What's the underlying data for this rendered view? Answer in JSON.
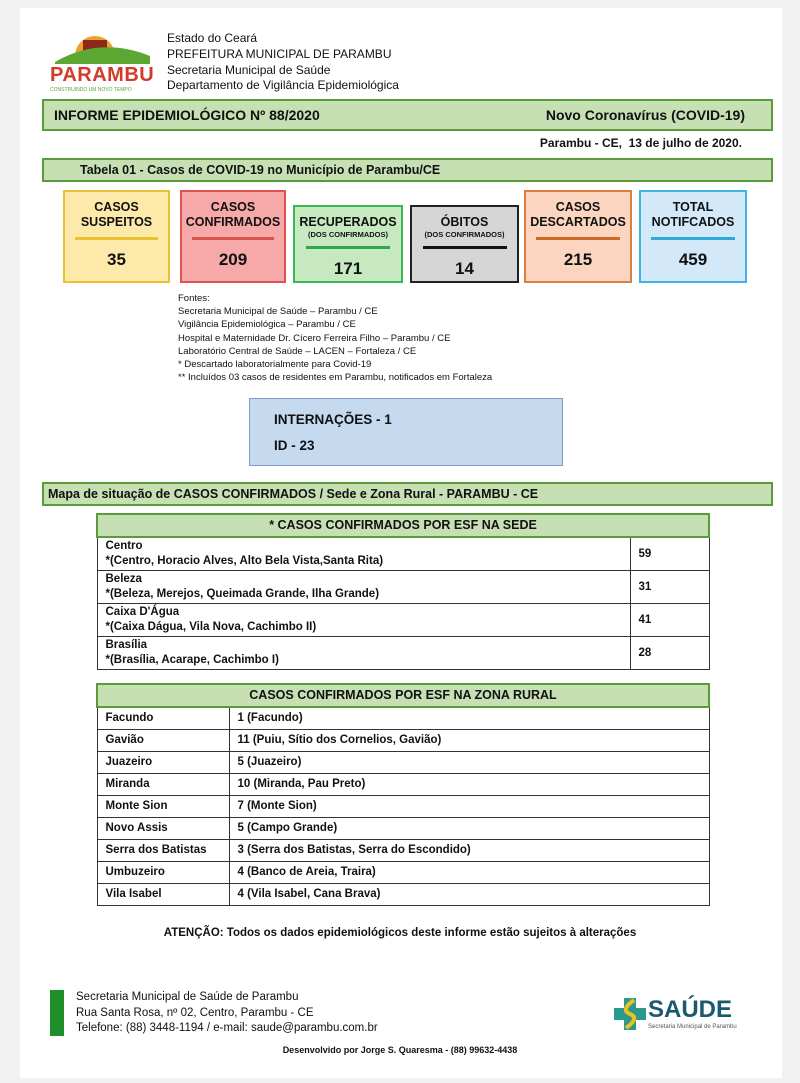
{
  "header": {
    "logo_text": "PARAMBU",
    "logo_tagline": "CONSTRUINDO UM NOVO TEMPO",
    "logo_top": "GOVERNO MUNICIPAL DE",
    "lines": [
      "Estado do Ceará",
      "PREFEITURA MUNICIPAL DE PARAMBU",
      "Secretaria Municipal de Saúde",
      "Departamento de Vigilância Epidemiológica"
    ]
  },
  "title": {
    "left": "INFORME EPIDEMIOLÓGICO Nº 88/2020",
    "right": "Novo Coronavírus (COVID-19)"
  },
  "date": "Parambu - CE,  13 de julho de 2020.",
  "table_title": "Tabela 01 - Casos de COVID-19 no Município de Parambu/CE",
  "boxes": [
    {
      "label1": "CASOS",
      "label2": "SUSPEITOS",
      "sub": "",
      "value": "35",
      "bg": "#fde9a9",
      "border": "#e8c233",
      "line": "#e8c233"
    },
    {
      "label1": "CASOS",
      "label2": "CONFIRMADOS",
      "sub": "",
      "value": "209",
      "bg": "#f7a8a8",
      "border": "#e05252",
      "line": "#d9534f"
    },
    {
      "label1": "RECUPERADOS",
      "label2": "",
      "sub": "(DOS CONFIRMADOS)",
      "value": "171",
      "bg": "#c6e9c0",
      "border": "#3cb55a",
      "line": "#2ea84a"
    },
    {
      "label1": "ÓBITOS",
      "label2": "",
      "sub": "(DOS CONFIRMADOS)",
      "value": "14",
      "bg": "#d6d6d6",
      "border": "#222222",
      "line": "#111111"
    },
    {
      "label1": "CASOS",
      "label2": "DESCARTADOS",
      "sub": "",
      "value": "215",
      "bg": "#fbd5bf",
      "border": "#d9803d",
      "line": "#c86a2a"
    },
    {
      "label1": "TOTAL",
      "label2": "NOTIFCADOS",
      "sub": "",
      "value": "459",
      "bg": "#d3e8f8",
      "border": "#40b4e0",
      "line": "#30a8d8"
    }
  ],
  "fontes": [
    "Fontes:",
    "Secretaria Municipal de Saúde – Parambu / CE",
    "Vigilância Epidemiológica – Parambu / CE",
    "Hospital e Maternidade Dr. Cícero Ferreira Filho – Parambu / CE",
    "Laboratório Central de Saúde – LACEN – Fortaleza / CE",
    "* Descartado laboratorialmente para Covid-19",
    "** Incluídos 03 casos de residentes em Parambu, notificados em Fortaleza"
  ],
  "internacoes": {
    "line1": "INTERNAÇÕES - 1",
    "line2": "ID - 23"
  },
  "map_title": "Mapa de situação de CASOS CONFIRMADOS / Sede e Zona Rural - PARAMBU - CE",
  "sede": {
    "header": "* CASOS CONFIRMADOS POR ESF NA SEDE",
    "rows": [
      {
        "name": "Centro",
        "detail": "*(Centro, Horacio Alves, Alto Bela Vista,Santa Rita)",
        "value": "59"
      },
      {
        "name": "Beleza",
        "detail": "*(Beleza, Merejos, Queimada Grande, Ilha Grande)",
        "value": "31"
      },
      {
        "name": "Caixa D'Água",
        "detail": "*(Caixa Dágua, Vila Nova, Cachimbo II)",
        "value": "41"
      },
      {
        "name": "Brasília",
        "detail": "*(Brasília, Acarape, Cachimbo I)",
        "value": "28"
      }
    ]
  },
  "rural": {
    "header": "CASOS CONFIRMADOS POR ESF NA ZONA RURAL",
    "rows": [
      {
        "name": "Facundo",
        "value": "1 (Facundo)"
      },
      {
        "name": "Gavião",
        "value": "11 (Puiu, Sítio dos Cornelios, Gavião)"
      },
      {
        "name": "Juazeiro",
        "value": "5 (Juazeiro)"
      },
      {
        "name": "Miranda",
        "value": "10 (Miranda, Pau Preto)"
      },
      {
        "name": "Monte Sion",
        "value": "7 (Monte Sion)"
      },
      {
        "name": "Novo Assis",
        "value": "5 (Campo Grande)"
      },
      {
        "name": "Serra dos Batistas",
        "value": "3 (Serra dos Batistas, Serra do Escondido)"
      },
      {
        "name": "Umbuzeiro",
        "value": "4 (Banco de Areia, Traira)"
      },
      {
        "name": "Vila Isabel",
        "value": "4 (Vila Isabel, Cana Brava)"
      }
    ]
  },
  "attention": "ATENÇÃO: Todos os dados epidemiológicos deste informe estão sujeitos à alterações",
  "footer": {
    "lines": [
      "Secretaria Municipal de Saúde de Parambu",
      "Rua Santa Rosa, nº 02, Centro, Parambu - CE",
      "Telefone: (88) 3448-1194 / e-mail: saude@parambu.com.br"
    ],
    "logo_text": "SAÚDE",
    "logo_sub": "Secretaria Municipal de Parambu",
    "credit": "Desenvolvido por Jorge S. Quaresma - (88) 99632-4438"
  }
}
